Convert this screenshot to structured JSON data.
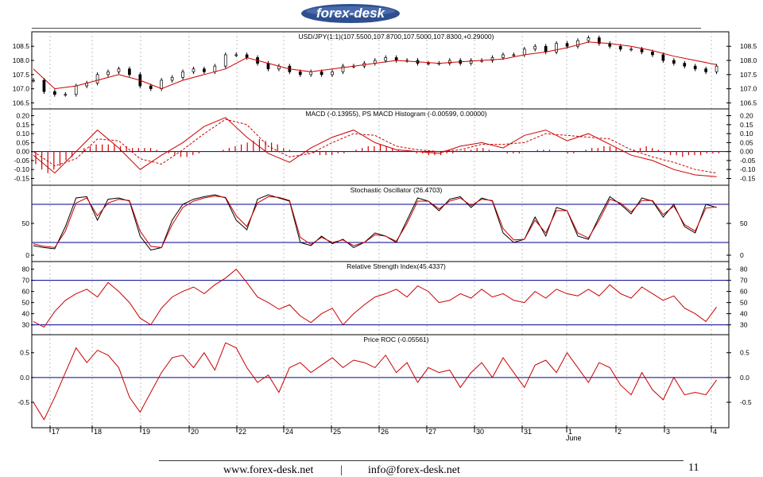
{
  "header": {
    "logo_text": "forex-desk"
  },
  "chart_data": [
    {
      "type": "candlestick",
      "title": "USD/JPY(1:1)(107.5500,107.8700,107.5000,107.8300,+0.29000)",
      "yticks": [
        "108.5",
        "108.0",
        "107.5",
        "107.0",
        "106.5"
      ],
      "ylim": [
        106.4,
        108.9
      ],
      "series": [
        {
          "name": "price",
          "color": "#000000",
          "x": [
            0,
            4,
            8,
            12,
            16,
            20,
            24,
            28,
            32,
            36,
            40,
            44,
            48,
            52,
            56,
            60,
            64,
            68,
            72,
            76,
            80,
            84,
            88,
            92,
            96,
            100,
            104,
            108,
            112,
            116,
            120,
            124,
            128,
            132,
            136,
            140,
            144,
            148,
            152,
            156,
            160,
            164,
            168,
            172,
            176,
            180,
            184,
            188,
            192,
            196,
            200,
            204,
            208,
            212,
            216,
            220,
            224,
            228,
            232,
            236,
            240,
            244,
            248,
            252,
            256
          ],
          "close": [
            107.3,
            106.9,
            106.8,
            106.8,
            107.1,
            107.2,
            107.5,
            107.6,
            107.7,
            107.5,
            107.1,
            107.0,
            107.3,
            107.4,
            107.6,
            107.7,
            107.6,
            107.8,
            108.2,
            108.2,
            108.1,
            107.9,
            107.7,
            107.8,
            107.6,
            107.5,
            107.6,
            107.5,
            107.6,
            107.8,
            107.8,
            107.9,
            108.0,
            108.1,
            108.0,
            108.0,
            107.9,
            107.9,
            107.9,
            108.0,
            107.9,
            108.0,
            108.0,
            108.1,
            108.2,
            108.2,
            108.4,
            108.5,
            108.3,
            108.6,
            108.5,
            108.7,
            108.8,
            108.6,
            108.5,
            108.4,
            108.4,
            108.3,
            108.2,
            108.0,
            107.9,
            107.8,
            107.7,
            107.6,
            107.8
          ]
        },
        {
          "name": "moving average",
          "color": "#cc0000",
          "x": [
            0,
            8,
            16,
            24,
            32,
            40,
            48,
            56,
            64,
            72,
            80,
            88,
            96,
            104,
            112,
            120,
            128,
            136,
            144,
            152,
            160,
            168,
            176,
            184,
            192,
            200,
            208,
            216,
            224,
            232,
            240,
            248,
            256
          ],
          "values": [
            107.7,
            107.0,
            107.1,
            107.3,
            107.5,
            107.3,
            107.0,
            107.3,
            107.5,
            107.7,
            108.1,
            107.9,
            107.7,
            107.6,
            107.7,
            107.8,
            107.9,
            108.0,
            107.95,
            107.9,
            107.95,
            108.0,
            108.05,
            108.2,
            108.3,
            108.45,
            108.65,
            108.6,
            108.5,
            108.35,
            108.15,
            108.0,
            107.85
          ]
        }
      ]
    },
    {
      "type": "line",
      "title": "MACD (-0.13955), PS MACD Histogram (-0.00599, 0.00000)",
      "yticks": [
        "0.20",
        "0.15",
        "0.10",
        "0.05",
        "0.00",
        "-0.05",
        "-0.10",
        "-0.15"
      ],
      "ylim": [
        -0.17,
        0.22
      ],
      "series": [
        {
          "name": "MACD",
          "color": "#cc0000",
          "x": [
            0,
            8,
            16,
            24,
            32,
            40,
            48,
            56,
            64,
            72,
            80,
            88,
            96,
            104,
            112,
            120,
            128,
            136,
            144,
            152,
            160,
            168,
            176,
            184,
            192,
            200,
            208,
            216,
            224,
            232,
            240,
            248,
            256
          ],
          "values": [
            -0.02,
            -0.12,
            0.0,
            0.12,
            0.02,
            -0.1,
            -0.02,
            0.05,
            0.14,
            0.19,
            0.08,
            -0.01,
            -0.06,
            0.02,
            0.08,
            0.12,
            0.05,
            0.01,
            0.0,
            -0.01,
            0.03,
            0.05,
            0.02,
            0.09,
            0.12,
            0.06,
            0.1,
            0.04,
            -0.02,
            -0.05,
            -0.1,
            -0.13,
            -0.14
          ]
        },
        {
          "name": "Signal",
          "color": "#cc0000",
          "dashed": true,
          "x": [
            0,
            8,
            16,
            24,
            32,
            40,
            48,
            56,
            64,
            72,
            80,
            88,
            96,
            104,
            112,
            120,
            128,
            136,
            144,
            152,
            160,
            168,
            176,
            184,
            192,
            200,
            208,
            216,
            224,
            232,
            240,
            248,
            256
          ],
          "values": [
            0.0,
            -0.08,
            -0.04,
            0.07,
            0.06,
            -0.04,
            -0.07,
            0.01,
            0.1,
            0.18,
            0.15,
            0.03,
            -0.03,
            -0.01,
            0.05,
            0.1,
            0.09,
            0.03,
            0.01,
            0.0,
            0.01,
            0.04,
            0.04,
            0.05,
            0.1,
            0.09,
            0.08,
            0.07,
            0.01,
            -0.03,
            -0.06,
            -0.1,
            -0.12
          ]
        }
      ],
      "histogram": [
        -0.07,
        -0.1,
        -0.12,
        -0.1,
        -0.08,
        -0.05,
        -0.03,
        0.0,
        0.02,
        0.03,
        0.04,
        0.04,
        0.04,
        0.04,
        0.03,
        0.03,
        0.02,
        0.02,
        0.02,
        0.02,
        0.01,
        0.0,
        -0.01,
        -0.02,
        -0.03,
        -0.03,
        -0.02,
        -0.01,
        0.0,
        0.0,
        0.0,
        0.01,
        0.02,
        0.03,
        0.04,
        0.05,
        0.06,
        0.07,
        0.06,
        0.05,
        0.04,
        0.02,
        0.01,
        0.0,
        0.0,
        -0.01,
        -0.01,
        -0.02,
        -0.02,
        -0.02,
        -0.01,
        -0.01,
        0.0,
        0.01,
        0.02,
        0.03,
        0.03,
        0.04,
        0.03,
        0.02,
        0.01,
        0.0,
        0.0,
        -0.01,
        -0.01,
        -0.02,
        -0.02,
        -0.02,
        -0.01,
        -0.01,
        0.0,
        0.01,
        0.01,
        0.02,
        0.02,
        0.01,
        0.0,
        0.0,
        -0.01,
        -0.01,
        -0.01,
        0.0,
        0.0,
        0.01,
        0.01,
        0.01,
        0.0,
        0.0,
        -0.01,
        -0.01,
        0.0,
        0.01,
        0.02,
        0.02,
        0.03,
        0.03,
        0.02,
        0.01,
        0.0,
        0.01,
        0.02,
        0.03,
        0.02,
        0.01,
        -0.01,
        -0.02,
        -0.02,
        -0.03,
        -0.02,
        -0.02,
        -0.02,
        -0.01,
        -0.01,
        -0.01
      ]
    },
    {
      "type": "line",
      "title": "Stochastic Oscillator (26.4703)",
      "yticks": [
        "50",
        "0"
      ],
      "ylim": [
        -5,
        105
      ],
      "reference_lines": [
        20,
        80
      ],
      "series": [
        {
          "name": "%K",
          "color": "#000000",
          "x": [
            0,
            4,
            8,
            12,
            16,
            20,
            24,
            28,
            32,
            36,
            40,
            44,
            48,
            52,
            56,
            60,
            64,
            68,
            72,
            76,
            80,
            84,
            88,
            92,
            96,
            100,
            104,
            108,
            112,
            116,
            120,
            124,
            128,
            132,
            136,
            140,
            144,
            148,
            152,
            156,
            160,
            164,
            168,
            172,
            176,
            180,
            184,
            188,
            192,
            196,
            200,
            204,
            208,
            212,
            216,
            220,
            224,
            228,
            232,
            236,
            240,
            244,
            248,
            252,
            256
          ],
          "values": [
            15,
            12,
            10,
            45,
            90,
            92,
            55,
            88,
            90,
            85,
            30,
            8,
            12,
            55,
            80,
            88,
            92,
            95,
            90,
            55,
            40,
            88,
            95,
            90,
            85,
            20,
            15,
            30,
            18,
            25,
            12,
            20,
            35,
            30,
            20,
            55,
            90,
            85,
            70,
            88,
            92,
            75,
            90,
            85,
            35,
            20,
            25,
            60,
            30,
            75,
            70,
            30,
            25,
            60,
            92,
            80,
            65,
            90,
            85,
            60,
            80,
            45,
            35,
            80,
            75
          ]
        },
        {
          "name": "%D",
          "color": "#cc0000",
          "x": [
            0,
            4,
            8,
            12,
            16,
            20,
            24,
            28,
            32,
            36,
            40,
            44,
            48,
            52,
            56,
            60,
            64,
            68,
            72,
            76,
            80,
            84,
            88,
            92,
            96,
            100,
            104,
            108,
            112,
            116,
            120,
            124,
            128,
            132,
            136,
            140,
            144,
            148,
            152,
            156,
            160,
            164,
            168,
            172,
            176,
            180,
            184,
            188,
            192,
            196,
            200,
            204,
            208,
            212,
            216,
            220,
            224,
            228,
            232,
            236,
            240,
            244,
            248,
            252,
            256
          ],
          "values": [
            18,
            14,
            12,
            38,
            82,
            90,
            62,
            82,
            88,
            86,
            38,
            14,
            12,
            48,
            75,
            85,
            90,
            93,
            91,
            62,
            45,
            82,
            92,
            91,
            86,
            28,
            17,
            28,
            20,
            24,
            15,
            20,
            32,
            30,
            22,
            50,
            85,
            85,
            73,
            85,
            90,
            78,
            88,
            86,
            42,
            24,
            25,
            55,
            35,
            70,
            70,
            35,
            27,
            55,
            88,
            82,
            68,
            86,
            86,
            64,
            77,
            48,
            38,
            74,
            76
          ]
        }
      ]
    },
    {
      "type": "line",
      "title": "Relative Strength Index(45.4337)",
      "yticks": [
        "80",
        "70",
        "60",
        "50",
        "40",
        "30"
      ],
      "ylim": [
        24,
        84
      ],
      "reference_lines": [
        30,
        70
      ],
      "series": [
        {
          "name": "RSI",
          "color": "#cc0000",
          "x": [
            0,
            4,
            8,
            12,
            16,
            20,
            24,
            28,
            32,
            36,
            40,
            44,
            48,
            52,
            56,
            60,
            64,
            68,
            72,
            76,
            80,
            84,
            88,
            92,
            96,
            100,
            104,
            108,
            112,
            116,
            120,
            124,
            128,
            132,
            136,
            140,
            144,
            148,
            152,
            156,
            160,
            164,
            168,
            172,
            176,
            180,
            184,
            188,
            192,
            196,
            200,
            204,
            208,
            212,
            216,
            220,
            224,
            228,
            232,
            236,
            240,
            244,
            248,
            252,
            256
          ],
          "values": [
            33,
            28,
            42,
            52,
            58,
            62,
            55,
            68,
            60,
            50,
            36,
            30,
            45,
            55,
            60,
            64,
            58,
            66,
            72,
            80,
            68,
            55,
            50,
            44,
            48,
            38,
            32,
            40,
            45,
            30,
            40,
            48,
            55,
            58,
            62,
            55,
            65,
            60,
            50,
            52,
            58,
            54,
            62,
            55,
            58,
            52,
            50,
            60,
            54,
            62,
            58,
            56,
            62,
            56,
            66,
            58,
            54,
            64,
            58,
            52,
            56,
            45,
            40,
            33,
            46
          ]
        }
      ]
    },
    {
      "type": "line",
      "title": "Price ROC (-0.05561)",
      "yticks": [
        "0.5",
        "0.0",
        "-0.5"
      ],
      "ylim": [
        -0.95,
        0.8
      ],
      "reference_lines": [
        0
      ],
      "series": [
        {
          "name": "ROC",
          "color": "#cc0000",
          "x": [
            0,
            4,
            8,
            12,
            16,
            20,
            24,
            28,
            32,
            36,
            40,
            44,
            48,
            52,
            56,
            60,
            64,
            68,
            72,
            76,
            80,
            84,
            88,
            92,
            96,
            100,
            104,
            108,
            112,
            116,
            120,
            124,
            128,
            132,
            136,
            140,
            144,
            148,
            152,
            156,
            160,
            164,
            168,
            172,
            176,
            180,
            184,
            188,
            192,
            196,
            200,
            204,
            208,
            212,
            216,
            220,
            224,
            228,
            232,
            236,
            240,
            244,
            248,
            252,
            256
          ],
          "values": [
            -0.5,
            -0.85,
            -0.4,
            0.1,
            0.6,
            0.3,
            0.55,
            0.45,
            0.2,
            -0.4,
            -0.7,
            -0.3,
            0.1,
            0.4,
            0.45,
            0.2,
            0.5,
            0.15,
            0.7,
            0.6,
            0.2,
            -0.1,
            0.05,
            -0.3,
            0.2,
            0.3,
            0.1,
            0.25,
            0.4,
            0.2,
            0.35,
            0.3,
            0.2,
            0.45,
            0.1,
            0.3,
            -0.1,
            0.2,
            0.1,
            0.15,
            -0.2,
            0.1,
            0.3,
            0.0,
            0.4,
            0.1,
            -0.2,
            0.25,
            0.35,
            0.1,
            0.5,
            0.2,
            -0.1,
            0.3,
            0.2,
            -0.15,
            -0.35,
            0.1,
            -0.25,
            -0.45,
            0.0,
            -0.35,
            -0.3,
            -0.35,
            -0.05
          ]
        }
      ]
    }
  ],
  "xaxis": {
    "tick_labels": [
      "17",
      "18",
      "19",
      "20",
      "22",
      "24",
      "25",
      "26",
      "27",
      "30",
      "31",
      "1",
      "2",
      "3",
      "4"
    ],
    "month_label": "June"
  },
  "footer": {
    "website": "www.forex-desk.net",
    "separator": "|",
    "email": "info@forex-desk.net",
    "page_number": "11"
  }
}
